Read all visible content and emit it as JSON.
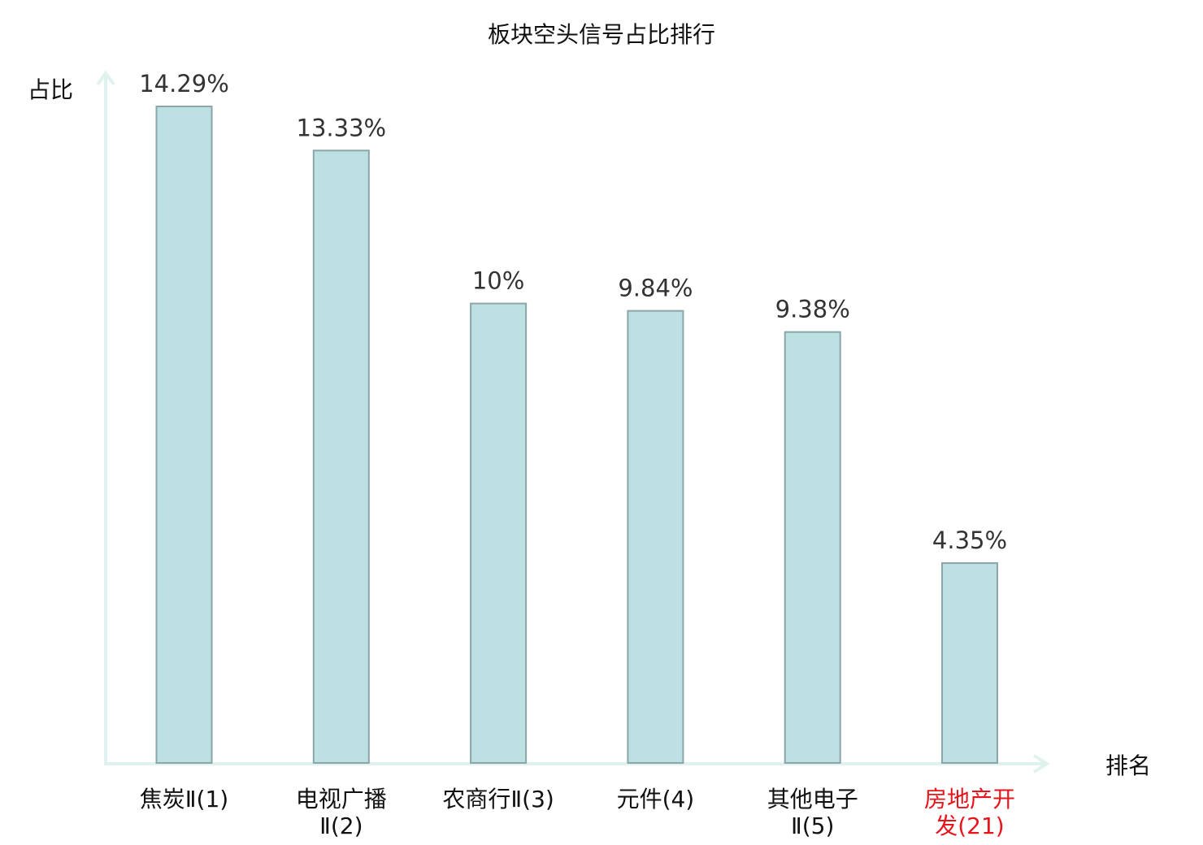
{
  "chart_data": {
    "type": "bar",
    "title": "板块空头信号占比排行",
    "ylabel": "占比",
    "xlabel": "排名",
    "categories": [
      {
        "lines": [
          "焦炭Ⅱ(1)"
        ],
        "highlight": false
      },
      {
        "lines": [
          "电视广播",
          "Ⅱ(2)"
        ],
        "highlight": false
      },
      {
        "lines": [
          "农商行Ⅱ(3)"
        ],
        "highlight": false
      },
      {
        "lines": [
          "元件(4)"
        ],
        "highlight": false
      },
      {
        "lines": [
          "其他电子",
          "Ⅱ(5)"
        ],
        "highlight": false
      },
      {
        "lines": [
          "房地产开",
          "发(21)"
        ],
        "highlight": true
      }
    ],
    "values": [
      14.29,
      13.33,
      10.0,
      9.84,
      9.38,
      4.35
    ],
    "value_labels": [
      "14.29%",
      "13.33%",
      "10%",
      "9.84%",
      "9.38%",
      "4.35%"
    ],
    "ylim": [
      0,
      14.29
    ],
    "grid": false,
    "colors": {
      "bar_fill": "#bde0e3",
      "bar_stroke": "#8aa6a8",
      "axis": "#e0f2ef",
      "label_normal": "#111111",
      "label_highlight": "#e8141c",
      "value_text": "#333333"
    }
  }
}
